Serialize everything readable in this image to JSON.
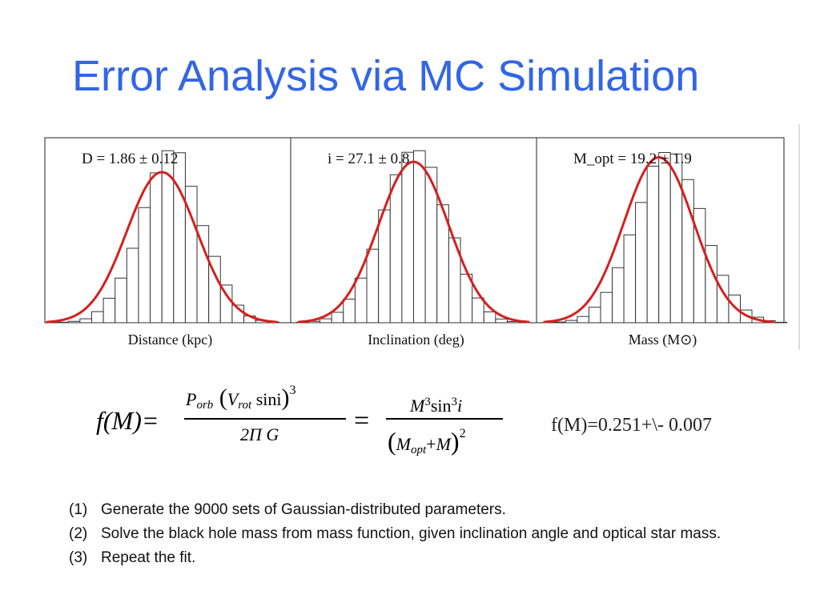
{
  "slide": {
    "title": "Error Analysis via MC Simulation"
  },
  "chart_data": [
    {
      "type": "bar",
      "title": "D = 1.86 ± 0.12",
      "xlabel": "Distance (kpc)",
      "ylabel": "",
      "fit": {
        "mean": 1.86,
        "sigma": 0.12,
        "color": "#d42020"
      },
      "bin_width": 0.04,
      "x": [
        1.46,
        1.5,
        1.54,
        1.58,
        1.62,
        1.66,
        1.7,
        1.74,
        1.78,
        1.82,
        1.86,
        1.9,
        1.94,
        1.98,
        2.02,
        2.06,
        2.1,
        2.14,
        2.18,
        2.22,
        2.26
      ],
      "values": [
        0,
        2,
        6,
        17,
        48,
        106,
        193,
        322,
        498,
        648,
        744,
        735,
        590,
        420,
        287,
        163,
        76,
        29,
        10,
        3,
        0
      ],
      "xlim": [
        1.46,
        2.3
      ],
      "ylim": [
        0,
        800
      ]
    },
    {
      "type": "bar",
      "title": "i = 27.1 ± 0.8",
      "xlabel": "Inclination (deg)",
      "ylabel": "",
      "fit": {
        "mean": 27.1,
        "sigma": 0.8,
        "color": "#d42020"
      },
      "bin_width": 0.267,
      "x": [
        24.433,
        24.7,
        24.967,
        25.233,
        25.5,
        25.767,
        26.033,
        26.3,
        26.567,
        26.833,
        27.1,
        27.367,
        27.633,
        27.9,
        28.167,
        28.433,
        28.7,
        28.967,
        29.233,
        29.5
      ],
      "values": [
        2,
        6,
        17,
        45,
        102,
        193,
        318,
        488,
        640,
        737,
        744,
        672,
        510,
        367,
        210,
        107,
        47,
        16,
        5,
        1
      ],
      "xlim": [
        24.3,
        29.9
      ],
      "ylim": [
        0,
        800
      ]
    },
    {
      "type": "bar",
      "title": "M_opt = 19.2 ± 1.9",
      "xlabel": "Mass (M⊙)",
      "ylabel": "",
      "fit": {
        "mean": 19.2,
        "sigma": 1.9,
        "color": "#d42020"
      },
      "bin_width": 0.633,
      "x": [
        12.866,
        13.499,
        14.132,
        14.765,
        15.398,
        16.031,
        16.664,
        17.297,
        17.93,
        18.563,
        19.196,
        19.829,
        20.462,
        21.095,
        21.728,
        22.361,
        22.994,
        23.627,
        24.26,
        24.893,
        25.526
      ],
      "values": [
        1,
        3,
        10,
        27,
        67,
        131,
        238,
        380,
        520,
        677,
        736,
        730,
        619,
        494,
        334,
        205,
        120,
        55,
        24,
        9,
        2
      ],
      "xlim": [
        12.55,
        26.0
      ],
      "ylim": [
        0,
        800
      ]
    }
  ],
  "equation": {
    "lhs": "f(M)=",
    "num1": "Porb (Vrot sini)",
    "exp1": "3",
    "den1": "2Π G",
    "equals": "=",
    "num2": "M3sin3i",
    "den2": "(Mopt+M)",
    "exp2": "2",
    "result": "f(M)=0.251+\\- 0.007"
  },
  "steps": [
    {
      "num": "(1)",
      "text": "Generate the 9000 sets of Gaussian-distributed parameters."
    },
    {
      "num": "(2)",
      "text": "Solve the black hole mass from mass function, given inclination angle and optical star mass."
    },
    {
      "num": "(3)",
      "text": "Repeat the fit."
    }
  ]
}
